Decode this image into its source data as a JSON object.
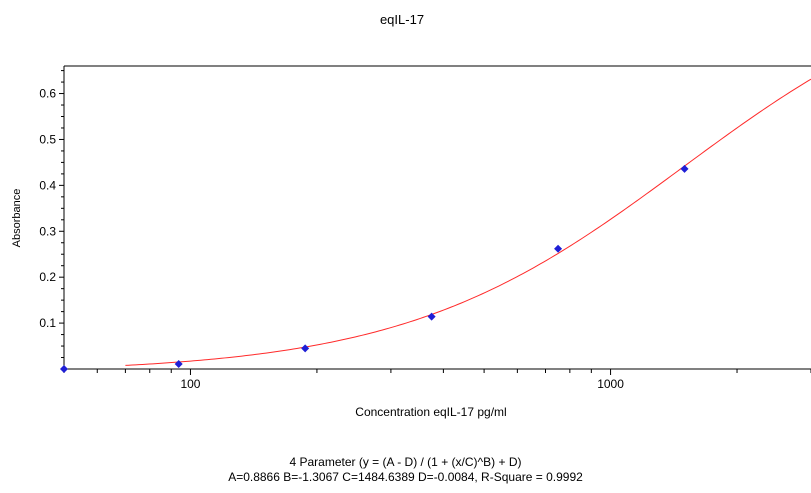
{
  "chart_data": {
    "type": "scatter",
    "title": "eqIL-17",
    "xlabel": "Concentration eqIL-17 pg/ml",
    "ylabel": "Absorbance",
    "x_scale": "log",
    "xlim": [
      50,
      3000
    ],
    "ylim": [
      0,
      0.66
    ],
    "x_tick_labels": [
      "100",
      "1000"
    ],
    "y_tick_labels": [
      "0.1",
      "0.2",
      "0.3",
      "0.4",
      "0.5",
      "0.6"
    ],
    "points_color": "#1f1fd6",
    "curve_color": "#ff2a2a",
    "series": [
      {
        "x": [
          50,
          93.75,
          187.5,
          375,
          750,
          1500
        ],
        "y": [
          0.0,
          0.011,
          0.045,
          0.114,
          0.262,
          0.436
        ]
      }
    ],
    "fit": {
      "model": "4 Parameter",
      "A": 0.8866,
      "B": -1.3067,
      "C": 1484.6389,
      "D": -0.0084,
      "x_start": 70
    }
  },
  "footer": {
    "line1": "4 Parameter (y = (A - D) / (1 + (x/C)^B) + D)",
    "line2": "A=0.8866  B=-1.3067  C=1484.6389  D=-0.0084, R-Square = 0.9992"
  }
}
